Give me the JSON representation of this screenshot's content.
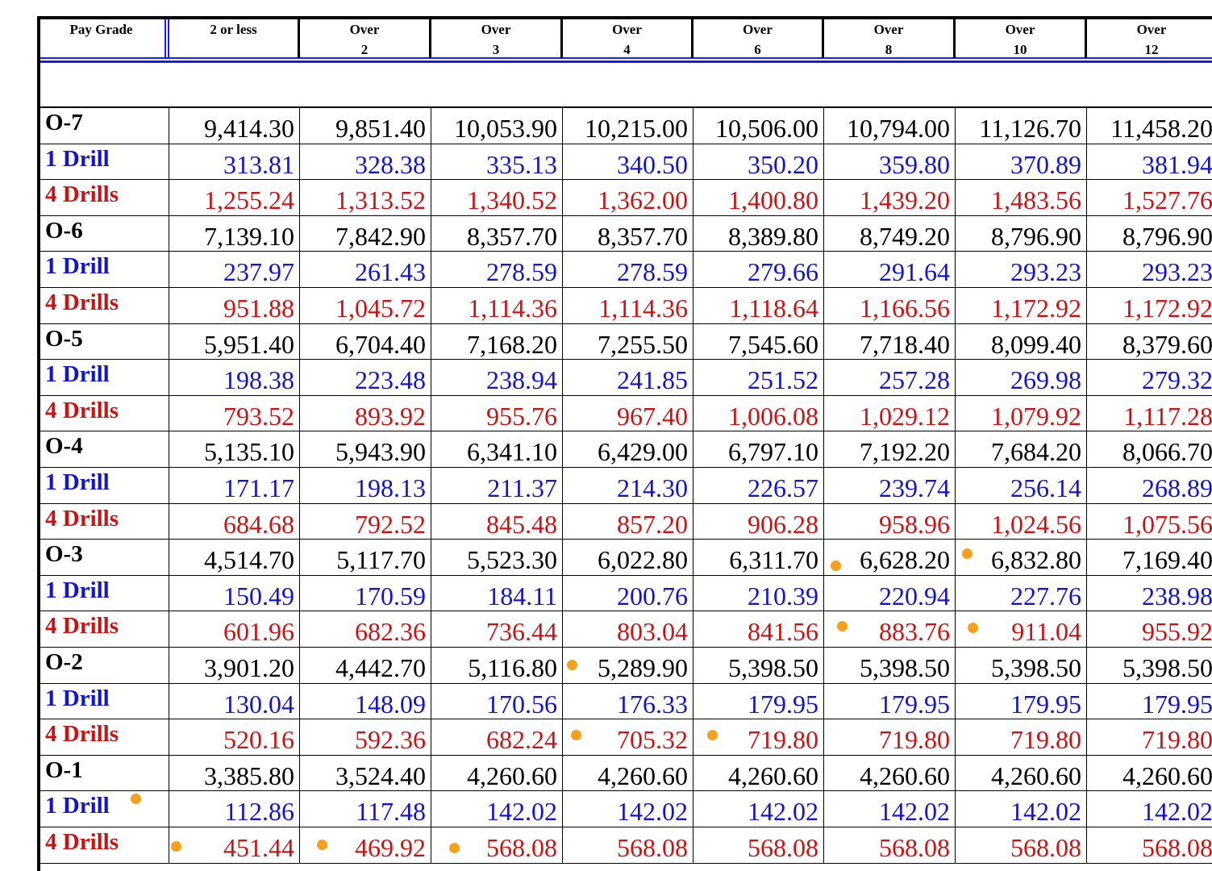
{
  "header": [
    {
      "line1": "Pay Grade"
    },
    {
      "line1": "2 or less"
    },
    {
      "line1": "Over",
      "line2": "2"
    },
    {
      "line1": "Over",
      "line2": "3"
    },
    {
      "line1": "Over",
      "line2": "4"
    },
    {
      "line1": "Over",
      "line2": "6"
    },
    {
      "line1": "Over",
      "line2": "8"
    },
    {
      "line1": "Over",
      "line2": "10"
    },
    {
      "line1": "Over",
      "line2": "12"
    }
  ],
  "rows": [
    {
      "label": "O-7",
      "values": [
        "9,414.30",
        "9,851.40",
        "10,053.90",
        "10,215.00",
        "10,506.00",
        "10,794.00",
        "11,126.70",
        "11,458.20"
      ]
    },
    {
      "label": "1 Drill",
      "values": [
        "313.81",
        "328.38",
        "335.13",
        "340.50",
        "350.20",
        "359.80",
        "370.89",
        "381.94"
      ]
    },
    {
      "label": "4 Drills",
      "values": [
        "1,255.24",
        "1,313.52",
        "1,340.52",
        "1,362.00",
        "1,400.80",
        "1,439.20",
        "1,483.56",
        "1,527.76"
      ]
    },
    {
      "label": "O-6",
      "values": [
        "7,139.10",
        "7,842.90",
        "8,357.70",
        "8,357.70",
        "8,389.80",
        "8,749.20",
        "8,796.90",
        "8,796.90"
      ]
    },
    {
      "label": "1 Drill",
      "values": [
        "237.97",
        "261.43",
        "278.59",
        "278.59",
        "279.66",
        "291.64",
        "293.23",
        "293.23"
      ]
    },
    {
      "label": "4 Drills",
      "values": [
        "951.88",
        "1,045.72",
        "1,114.36",
        "1,114.36",
        "1,118.64",
        "1,166.56",
        "1,172.92",
        "1,172.92"
      ]
    },
    {
      "label": "O-5",
      "values": [
        "5,951.40",
        "6,704.40",
        "7,168.20",
        "7,255.50",
        "7,545.60",
        "7,718.40",
        "8,099.40",
        "8,379.60"
      ]
    },
    {
      "label": "1 Drill",
      "values": [
        "198.38",
        "223.48",
        "238.94",
        "241.85",
        "251.52",
        "257.28",
        "269.98",
        "279.32"
      ]
    },
    {
      "label": "4 Drills",
      "values": [
        "793.52",
        "893.92",
        "955.76",
        "967.40",
        "1,006.08",
        "1,029.12",
        "1,079.92",
        "1,117.28"
      ]
    },
    {
      "label": "O-4",
      "values": [
        "5,135.10",
        "5,943.90",
        "6,341.10",
        "6,429.00",
        "6,797.10",
        "7,192.20",
        "7,684.20",
        "8,066.70"
      ]
    },
    {
      "label": "1 Drill",
      "values": [
        "171.17",
        "198.13",
        "211.37",
        "214.30",
        "226.57",
        "239.74",
        "256.14",
        "268.89"
      ]
    },
    {
      "label": "4 Drills",
      "values": [
        "684.68",
        "792.52",
        "845.48",
        "857.20",
        "906.28",
        "958.96",
        "1,024.56",
        "1,075.56"
      ]
    },
    {
      "label": "O-3",
      "values": [
        "4,514.70",
        "5,117.70",
        "5,523.30",
        "6,022.80",
        "6,311.70",
        "6,628.20",
        "6,832.80",
        "7,169.40"
      ]
    },
    {
      "label": "1 Drill",
      "values": [
        "150.49",
        "170.59",
        "184.11",
        "200.76",
        "210.39",
        "220.94",
        "227.76",
        "238.98"
      ]
    },
    {
      "label": "4 Drills",
      "values": [
        "601.96",
        "682.36",
        "736.44",
        "803.04",
        "841.56",
        "883.76",
        "911.04",
        "955.92"
      ]
    },
    {
      "label": "O-2",
      "values": [
        "3,901.20",
        "4,442.70",
        "5,116.80",
        "5,289.90",
        "5,398.50",
        "5,398.50",
        "5,398.50",
        "5,398.50"
      ]
    },
    {
      "label": "1 Drill",
      "values": [
        "130.04",
        "148.09",
        "170.56",
        "176.33",
        "179.95",
        "179.95",
        "179.95",
        "179.95"
      ]
    },
    {
      "label": "4 Drills",
      "values": [
        "520.16",
        "592.36",
        "682.24",
        "705.32",
        "719.80",
        "719.80",
        "719.80",
        "719.80"
      ]
    },
    {
      "label": "O-1",
      "values": [
        "3,385.80",
        "3,524.40",
        "4,260.60",
        "4,260.60",
        "4,260.60",
        "4,260.60",
        "4,260.60",
        "4,260.60"
      ]
    },
    {
      "label": "1 Drill",
      "values": [
        "112.86",
        "117.48",
        "142.02",
        "142.02",
        "142.02",
        "142.02",
        "142.02",
        "142.02"
      ]
    },
    {
      "label": "4 Drills",
      "values": [
        "451.44",
        "469.92",
        "568.08",
        "568.08",
        "568.08",
        "568.08",
        "568.08",
        "568.08"
      ]
    }
  ]
}
